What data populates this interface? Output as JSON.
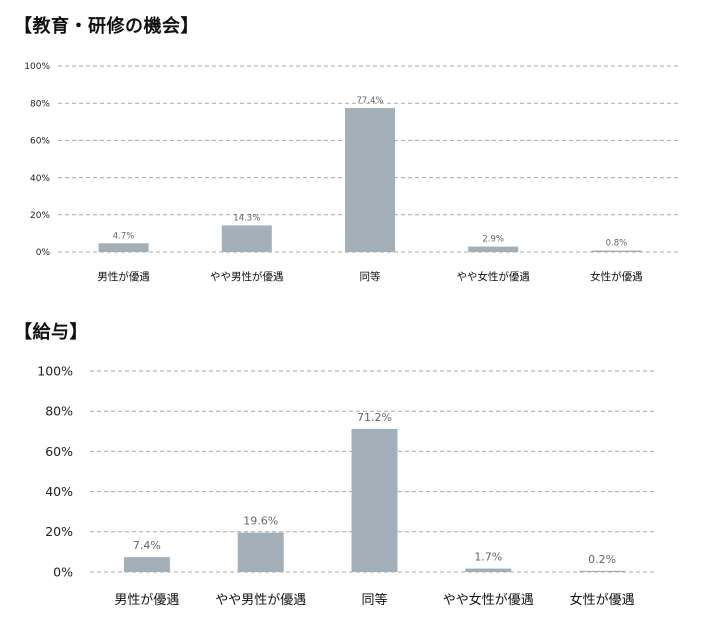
{
  "sections": [
    {
      "title": "【教育・研修の機会】"
    },
    {
      "title": "【給与】"
    }
  ],
  "chart_data": [
    {
      "type": "bar",
      "title": "【教育・研修の機会】",
      "categories": [
        "男性が優遇",
        "やや男性が優遇",
        "同等",
        "やや女性が優遇",
        "女性が優遇"
      ],
      "values": [
        4.7,
        14.3,
        77.4,
        2.9,
        0.8
      ],
      "data_labels": [
        "4.7%",
        "14.3%",
        "77.4%",
        "2.9%",
        "0.8%"
      ],
      "ylim": [
        0,
        100
      ],
      "y_ticks": [
        "0%",
        "20%",
        "40%",
        "60%",
        "80%",
        "100%"
      ],
      "grid": true,
      "bar_color": "#a3b0ba"
    },
    {
      "type": "bar",
      "title": "【給与】",
      "categories": [
        "男性が優遇",
        "やや男性が優遇",
        "同等",
        "やや女性が優遇",
        "女性が優遇"
      ],
      "values": [
        7.4,
        19.6,
        71.2,
        1.7,
        0.2
      ],
      "data_labels": [
        "7.4%",
        "19.6%",
        "71.2%",
        "1.7%",
        "0.2%"
      ],
      "ylim": [
        0,
        100
      ],
      "y_ticks": [
        "0%",
        "20%",
        "40%",
        "60%",
        "80%",
        "100%"
      ],
      "grid": true,
      "bar_color": "#a3b0ba"
    }
  ]
}
